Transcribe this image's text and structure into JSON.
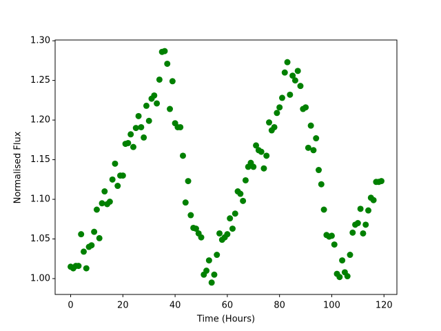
{
  "chart_data": {
    "type": "scatter",
    "xlabel": "Time (Hours)",
    "ylabel": "Normalised Flux",
    "color": "#008000",
    "xlim": [
      -5.95,
      124.95
    ],
    "ylim": [
      0.98,
      1.301
    ],
    "xticks": [
      0,
      20,
      40,
      60,
      80,
      100,
      120
    ],
    "yticks": [
      {
        "value": 1.0,
        "label": "1.00"
      },
      1.05,
      {
        "value": 1.1,
        "label": "1.10"
      },
      1.15,
      {
        "value": 1.2,
        "label": "1.20"
      },
      1.25,
      {
        "value": 1.3,
        "label": "1.30"
      }
    ],
    "x": [
      0,
      1,
      2,
      3,
      4,
      5,
      6,
      7,
      8,
      9,
      10,
      11,
      12,
      13,
      14,
      15,
      16,
      17,
      18,
      19,
      20,
      21,
      22,
      23,
      24,
      25,
      26,
      27,
      28,
      29,
      30,
      31,
      32,
      33,
      34,
      35,
      36,
      37,
      38,
      39,
      40,
      41,
      42,
      43,
      44,
      45,
      46,
      47,
      48,
      49,
      50,
      51,
      52,
      53,
      54,
      55,
      56,
      57,
      58,
      59,
      60,
      61,
      62,
      63,
      64,
      65,
      66,
      67,
      68,
      69,
      70,
      71,
      72,
      73,
      74,
      75,
      76,
      77,
      78,
      79,
      80,
      81,
      82,
      83,
      84,
      85,
      86,
      87,
      88,
      89,
      90,
      91,
      92,
      93,
      94,
      95,
      96,
      97,
      98,
      99,
      100,
      101,
      102,
      103,
      104,
      105,
      106,
      107,
      108,
      109,
      110,
      111,
      112,
      113,
      114,
      115,
      116,
      117,
      118,
      119
    ],
    "values": [
      1.015,
      1.013,
      1.016,
      1.016,
      1.056,
      1.034,
      1.013,
      1.04,
      1.042,
      1.059,
      1.087,
      1.051,
      1.095,
      1.11,
      1.094,
      1.097,
      1.125,
      1.145,
      1.117,
      1.13,
      1.13,
      1.17,
      1.171,
      1.182,
      1.166,
      1.19,
      1.205,
      1.191,
      1.178,
      1.218,
      1.199,
      1.227,
      1.231,
      1.221,
      1.251,
      1.286,
      1.287,
      1.271,
      1.214,
      1.249,
      1.196,
      1.191,
      1.191,
      1.155,
      1.096,
      1.123,
      1.08,
      1.064,
      1.063,
      1.057,
      1.052,
      1.005,
      1.01,
      1.023,
      0.995,
      1.005,
      1.03,
      1.057,
      1.049,
      1.052,
      1.056,
      1.076,
      1.063,
      1.082,
      1.11,
      1.107,
      1.098,
      1.124,
      1.141,
      1.146,
      1.141,
      1.168,
      1.162,
      1.16,
      1.139,
      1.155,
      1.197,
      1.187,
      1.191,
      1.209,
      1.216,
      1.228,
      1.26,
      1.273,
      1.232,
      1.256,
      1.25,
      1.262,
      1.243,
      1.214,
      1.216,
      1.165,
      1.193,
      1.162,
      1.177,
      1.137,
      1.119,
      1.087,
      1.055,
      1.053,
      1.054,
      1.043,
      1.006,
      1.002,
      1.023,
      1.008,
      1.003,
      1.03,
      1.058,
      1.068,
      1.07,
      1.088,
      1.057,
      1.068,
      1.086,
      1.102,
      1.099,
      1.122,
      1.122,
      1.123
    ]
  }
}
